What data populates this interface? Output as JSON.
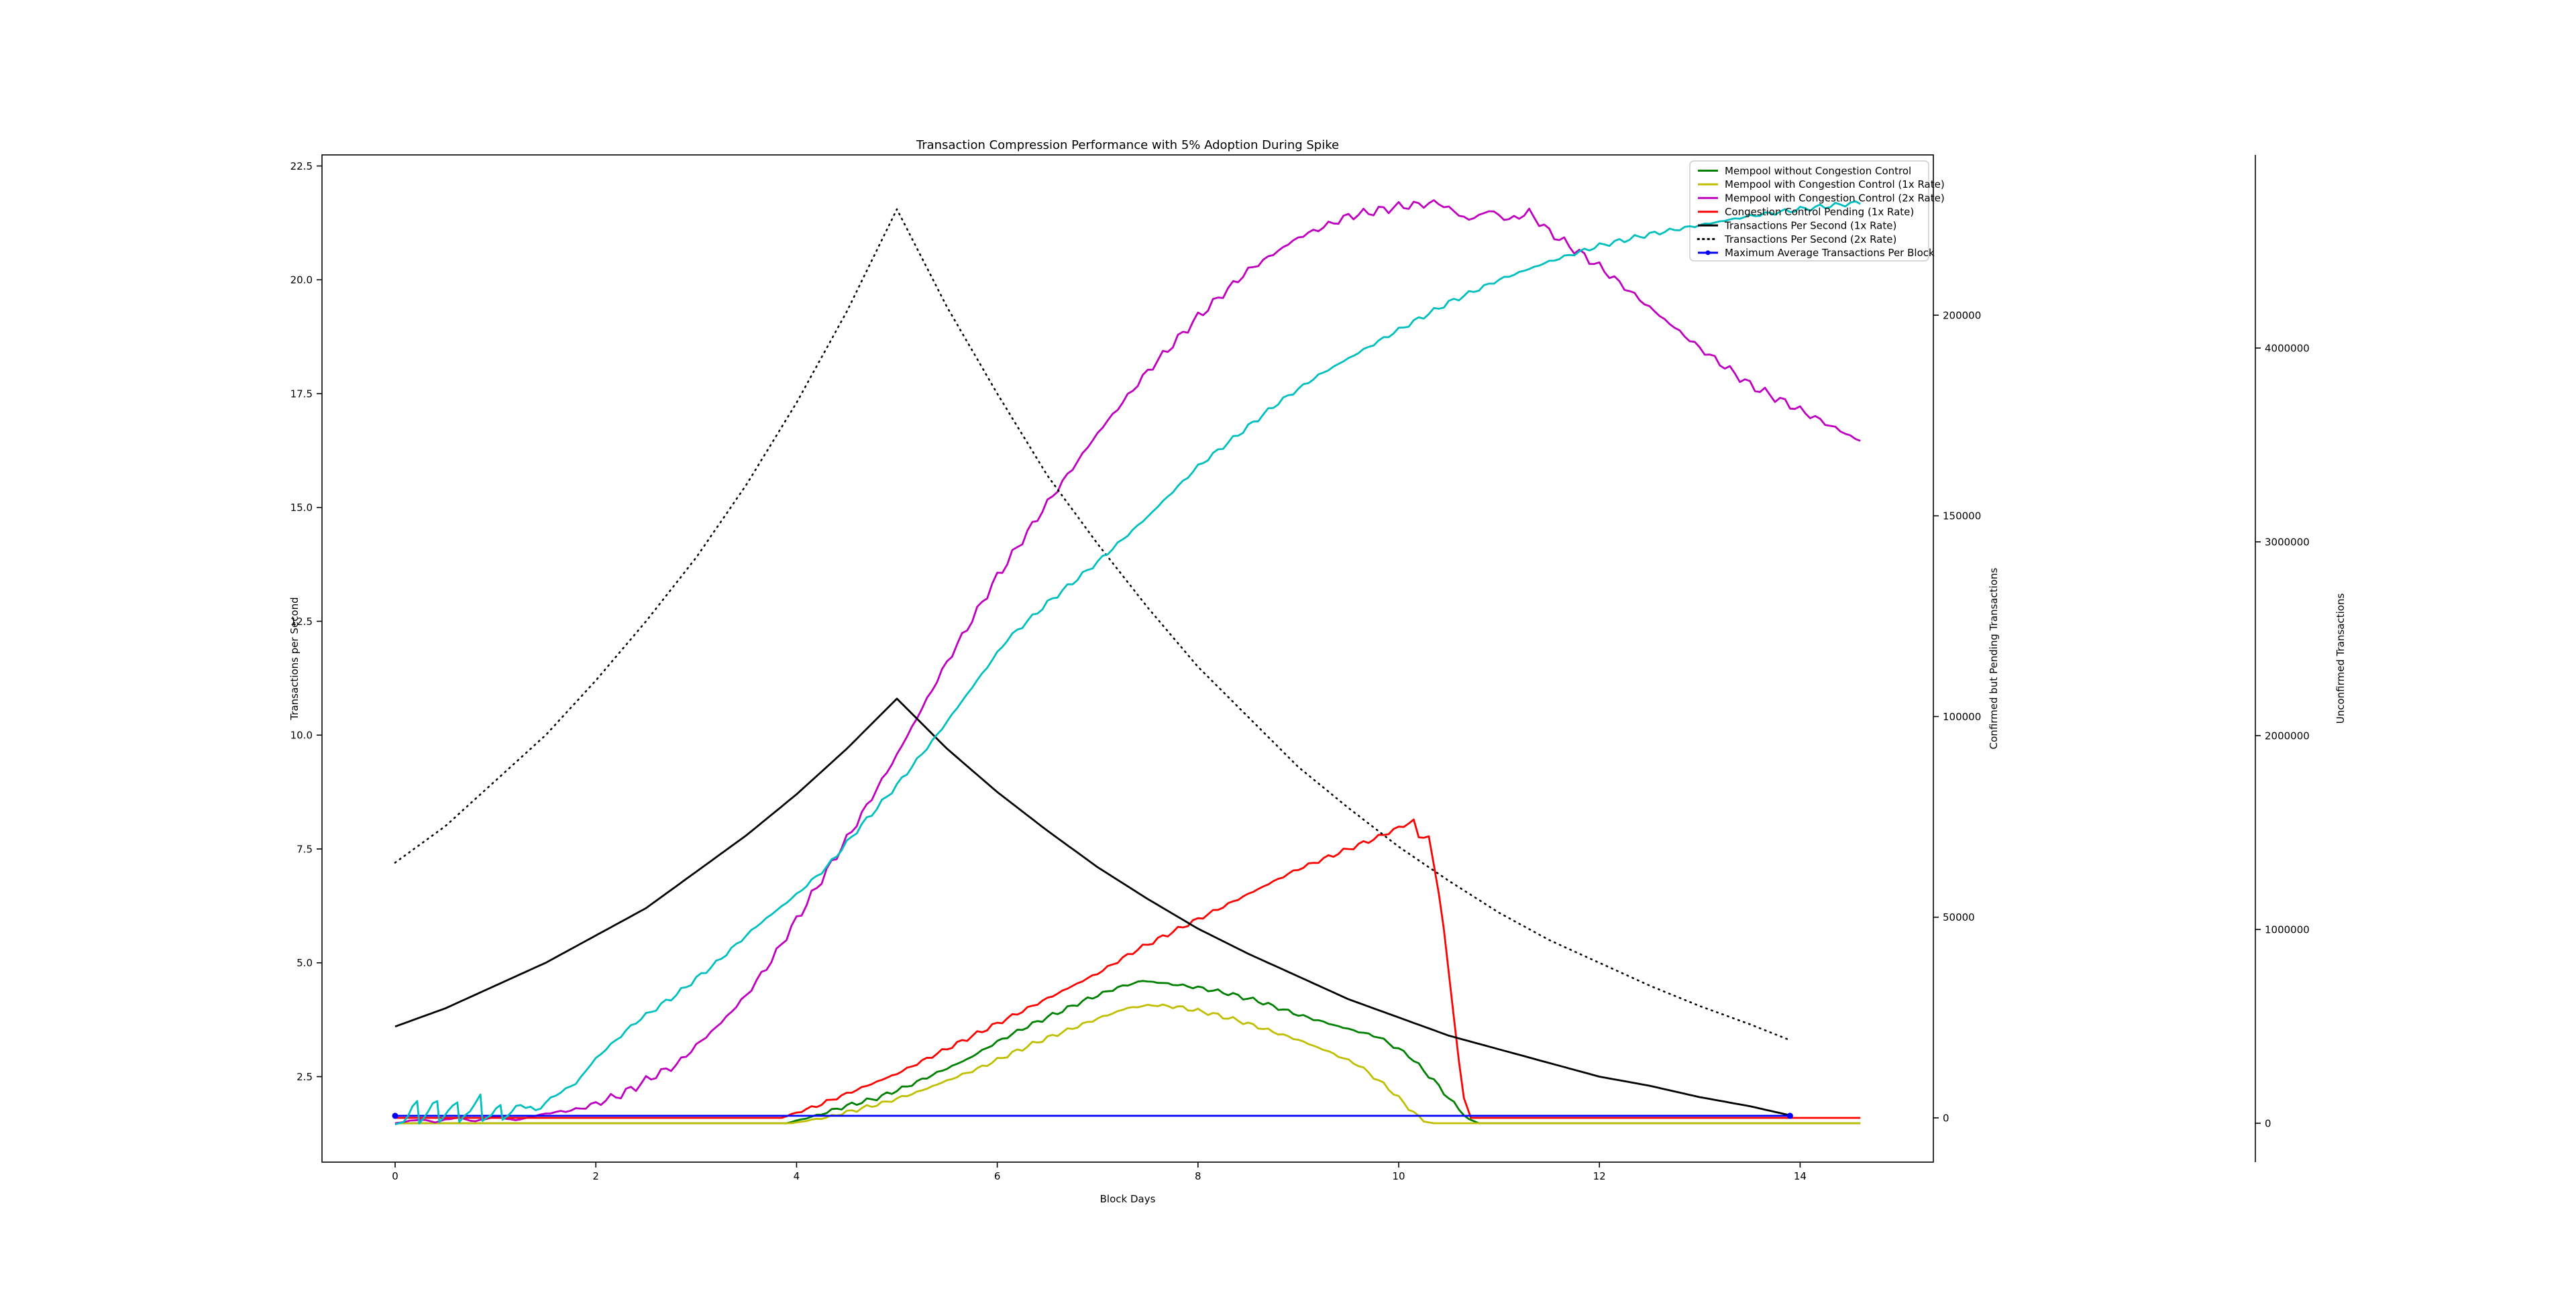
{
  "title": "Transaction Compression Performance with 5% Adoption During Spike",
  "axes": {
    "x": {
      "label": "Block Days",
      "tick_labels": [
        "0",
        "2",
        "4",
        "6",
        "8",
        "10",
        "12",
        "14"
      ],
      "tick_values": [
        0,
        2,
        4,
        6,
        8,
        10,
        12,
        14
      ],
      "range": [
        -0.73,
        15.33
      ]
    },
    "y_left": {
      "label": "Transactions per Second",
      "tick_labels": [
        "2.5",
        "5.0",
        "7.5",
        "10.0",
        "12.5",
        "15.0",
        "17.5",
        "20.0",
        "22.5"
      ],
      "tick_values": [
        2.5,
        5.0,
        7.5,
        10.0,
        12.5,
        15.0,
        17.5,
        20.0,
        22.5
      ],
      "range": [
        0.62,
        22.74
      ]
    },
    "y_right_pending": {
      "label": "Confirmed but Pending Transactions",
      "label_color": "#ff0000",
      "tick_labels": [
        "0",
        "50000",
        "100000",
        "150000",
        "200000"
      ],
      "tick_values": [
        0,
        50000,
        100000,
        150000,
        200000
      ]
    },
    "y_right_unconfirmed": {
      "label": "Unconfirmed Transactions",
      "label_color": "#bfbf00",
      "tick_labels": [
        "0",
        "1000000",
        "2000000",
        "3000000",
        "4000000"
      ],
      "tick_values": [
        0,
        1000000,
        2000000,
        3000000,
        4000000
      ]
    }
  },
  "legend": {
    "entries": [
      {
        "label": "Mempool without Congestion Control",
        "color": "#008000",
        "dash": null,
        "marker": false
      },
      {
        "label": "Mempool with Congestion Control (1x Rate)",
        "color": "#bfbf00",
        "dash": null,
        "marker": false
      },
      {
        "label": "Mempool with Congestion Control (2x Rate)",
        "color": "#bf00bf",
        "dash": null,
        "marker": false
      },
      {
        "label": "Congestion Control Pending (1x Rate)",
        "color": "#ff0000",
        "dash": null,
        "marker": false
      },
      {
        "label": "Transactions Per Second (1x Rate)",
        "color": "#000000",
        "dash": null,
        "marker": false
      },
      {
        "label": "Transactions Per Second (2x Rate)",
        "color": "#000000",
        "dash": "dot",
        "marker": false
      },
      {
        "label": "Maximum Average Transactions Per Block",
        "color": "#0000ff",
        "dash": null,
        "marker": true
      }
    ]
  },
  "chart_data": {
    "type": "line",
    "title": "Transaction Compression Performance with 5% Adoption During Spike",
    "xlabel": "Block Days",
    "x_unit": "block days",
    "grid": false,
    "legend_position": "upper right",
    "series": [
      {
        "name": "Mempool without Congestion Control",
        "color": "#008000",
        "axis": "unconfirmed",
        "dash": null,
        "jitter": 12000,
        "end_markers": false,
        "points": [
          [
            0,
            0
          ],
          [
            3.9,
            0
          ],
          [
            4.2,
            40000
          ],
          [
            4.5,
            90000
          ],
          [
            4.8,
            130000
          ],
          [
            5.1,
            190000
          ],
          [
            5.4,
            260000
          ],
          [
            5.7,
            330000
          ],
          [
            6.0,
            420000
          ],
          [
            6.3,
            500000
          ],
          [
            6.6,
            570000
          ],
          [
            6.9,
            640000
          ],
          [
            7.2,
            700000
          ],
          [
            7.45,
            735000
          ],
          [
            7.7,
            720000
          ],
          [
            8.0,
            700000
          ],
          [
            8.3,
            670000
          ],
          [
            8.6,
            630000
          ],
          [
            9.0,
            560000
          ],
          [
            9.4,
            500000
          ],
          [
            9.8,
            445000
          ],
          [
            10.1,
            350000
          ],
          [
            10.35,
            220000
          ],
          [
            10.55,
            100000
          ],
          [
            10.7,
            20000
          ],
          [
            10.8,
            0
          ],
          [
            14.6,
            0
          ]
        ]
      },
      {
        "name": "Mempool with Congestion Control (1x Rate)",
        "color": "#bfbf00",
        "axis": "unconfirmed",
        "dash": null,
        "jitter": 12000,
        "end_markers": false,
        "points": [
          [
            0,
            0
          ],
          [
            3.95,
            0
          ],
          [
            4.3,
            30000
          ],
          [
            4.6,
            70000
          ],
          [
            4.9,
            110000
          ],
          [
            5.2,
            160000
          ],
          [
            5.5,
            220000
          ],
          [
            5.8,
            280000
          ],
          [
            6.1,
            350000
          ],
          [
            6.4,
            420000
          ],
          [
            6.7,
            480000
          ],
          [
            7.0,
            540000
          ],
          [
            7.3,
            595000
          ],
          [
            7.55,
            610000
          ],
          [
            7.8,
            600000
          ],
          [
            8.1,
            570000
          ],
          [
            8.4,
            530000
          ],
          [
            8.7,
            480000
          ],
          [
            9.0,
            430000
          ],
          [
            9.3,
            370000
          ],
          [
            9.6,
            300000
          ],
          [
            9.9,
            180000
          ],
          [
            10.1,
            80000
          ],
          [
            10.25,
            10000
          ],
          [
            10.35,
            0
          ],
          [
            14.6,
            0
          ]
        ]
      },
      {
        "name": "Mempool with Congestion Control (2x Rate)",
        "color": "#bf00bf",
        "axis": "unconfirmed",
        "dash": null,
        "jitter": 25000,
        "end_markers": false,
        "points": [
          [
            0,
            0
          ],
          [
            0.25,
            20000
          ],
          [
            0.4,
            5000
          ],
          [
            0.6,
            30000
          ],
          [
            0.8,
            10000
          ],
          [
            1.0,
            35000
          ],
          [
            1.2,
            15000
          ],
          [
            1.5,
            50000
          ],
          [
            1.8,
            70000
          ],
          [
            2.0,
            100000
          ],
          [
            2.3,
            160000
          ],
          [
            2.6,
            250000
          ],
          [
            2.8,
            300000
          ],
          [
            3.0,
            400000
          ],
          [
            3.25,
            520000
          ],
          [
            3.5,
            660000
          ],
          [
            3.75,
            840000
          ],
          [
            4.0,
            1050000
          ],
          [
            4.3,
            1300000
          ],
          [
            4.6,
            1550000
          ],
          [
            5.0,
            1900000
          ],
          [
            5.5,
            2380000
          ],
          [
            6.0,
            2820000
          ],
          [
            6.5,
            3200000
          ],
          [
            7.0,
            3560000
          ],
          [
            7.5,
            3880000
          ],
          [
            8.0,
            4160000
          ],
          [
            8.5,
            4400000
          ],
          [
            9.0,
            4570000
          ],
          [
            9.5,
            4680000
          ],
          [
            10.0,
            4730000
          ],
          [
            10.4,
            4750000
          ],
          [
            10.7,
            4660000
          ],
          [
            10.9,
            4710000
          ],
          [
            11.1,
            4660000
          ],
          [
            11.3,
            4700000
          ],
          [
            11.5,
            4600000
          ],
          [
            12.0,
            4420000
          ],
          [
            12.5,
            4210000
          ],
          [
            13.0,
            4000000
          ],
          [
            13.5,
            3810000
          ],
          [
            14.0,
            3680000
          ],
          [
            14.3,
            3600000
          ],
          [
            14.6,
            3520000
          ]
        ]
      },
      {
        "name": "Congestion Control Pending (1x Rate)",
        "color": "#ff0000",
        "axis": "pending",
        "dash": null,
        "jitter": 600,
        "end_markers": false,
        "points": [
          [
            0,
            0
          ],
          [
            3.85,
            0
          ],
          [
            4.2,
            3000
          ],
          [
            4.6,
            7000
          ],
          [
            5.0,
            11000
          ],
          [
            5.4,
            16000
          ],
          [
            5.8,
            21000
          ],
          [
            6.2,
            26000
          ],
          [
            6.6,
            31000
          ],
          [
            7.0,
            36000
          ],
          [
            7.4,
            42000
          ],
          [
            7.8,
            47000
          ],
          [
            8.2,
            52000
          ],
          [
            8.6,
            57000
          ],
          [
            9.0,
            62000
          ],
          [
            9.4,
            66000
          ],
          [
            9.8,
            70000
          ],
          [
            10.15,
            74000
          ],
          [
            10.2,
            70000
          ],
          [
            10.3,
            70000
          ],
          [
            10.35,
            63000
          ],
          [
            10.4,
            56000
          ],
          [
            10.45,
            47000
          ],
          [
            10.5,
            36000
          ],
          [
            10.55,
            25000
          ],
          [
            10.6,
            14000
          ],
          [
            10.65,
            5000
          ],
          [
            10.72,
            0
          ],
          [
            14.6,
            0
          ]
        ]
      },
      {
        "name": "Transactions Per Second (1x Rate)",
        "color": "#000000",
        "axis": "left",
        "dash": null,
        "jitter": 0,
        "end_markers": false,
        "points": [
          [
            0,
            3.6
          ],
          [
            0.5,
            4.0
          ],
          [
            1,
            4.5
          ],
          [
            1.5,
            5.0
          ],
          [
            2,
            5.6
          ],
          [
            2.5,
            6.2
          ],
          [
            3,
            7.0
          ],
          [
            3.5,
            7.8
          ],
          [
            4,
            8.7
          ],
          [
            4.5,
            9.7
          ],
          [
            5,
            10.8
          ],
          [
            5.5,
            9.7
          ],
          [
            6,
            8.75
          ],
          [
            6.5,
            7.9
          ],
          [
            7,
            7.1
          ],
          [
            7.5,
            6.4
          ],
          [
            8,
            5.75
          ],
          [
            8.5,
            5.2
          ],
          [
            9,
            4.7
          ],
          [
            9.5,
            4.2
          ],
          [
            10,
            3.8
          ],
          [
            10.5,
            3.4
          ],
          [
            11,
            3.1
          ],
          [
            11.5,
            2.8
          ],
          [
            12,
            2.5
          ],
          [
            12.5,
            2.3
          ],
          [
            13,
            2.05
          ],
          [
            13.5,
            1.85
          ],
          [
            13.9,
            1.65
          ]
        ]
      },
      {
        "name": "Transactions Per Second (2x Rate)",
        "color": "#000000",
        "axis": "left",
        "dash": "dot",
        "jitter": 0,
        "end_markers": false,
        "points": [
          [
            0,
            7.2
          ],
          [
            0.5,
            8.0
          ],
          [
            1,
            9.0
          ],
          [
            1.5,
            10.0
          ],
          [
            2,
            11.2
          ],
          [
            2.5,
            12.5
          ],
          [
            3,
            13.9
          ],
          [
            3.5,
            15.5
          ],
          [
            4,
            17.3
          ],
          [
            4.5,
            19.3
          ],
          [
            5,
            21.55
          ],
          [
            5.5,
            19.4
          ],
          [
            6,
            17.5
          ],
          [
            6.5,
            15.7
          ],
          [
            7,
            14.2
          ],
          [
            7.5,
            12.8
          ],
          [
            8,
            11.5
          ],
          [
            8.5,
            10.4
          ],
          [
            9,
            9.3
          ],
          [
            9.5,
            8.4
          ],
          [
            10,
            7.55
          ],
          [
            10.5,
            6.8
          ],
          [
            11,
            6.1
          ],
          [
            11.5,
            5.5
          ],
          [
            12,
            5.0
          ],
          [
            12.5,
            4.5
          ],
          [
            13,
            4.05
          ],
          [
            13.5,
            3.65
          ],
          [
            13.9,
            3.3
          ]
        ]
      },
      {
        "name": "Maximum Average Transactions Per Block",
        "color": "#0000ff",
        "axis": "left",
        "dash": null,
        "jitter": 0,
        "end_markers": true,
        "points": [
          [
            0,
            1.64
          ],
          [
            13.9,
            1.64
          ]
        ]
      },
      {
        "name": "",
        "color": "#00bfbf",
        "axis": "left",
        "dash": null,
        "jitter": 0.06,
        "end_markers": false,
        "points": [
          [
            0,
            1.45
          ],
          [
            0.08,
            1.5
          ],
          [
            0.22,
            1.95
          ],
          [
            0.24,
            1.47
          ],
          [
            0.42,
            2.0
          ],
          [
            0.44,
            1.5
          ],
          [
            0.62,
            1.98
          ],
          [
            0.64,
            1.5
          ],
          [
            0.85,
            2.05
          ],
          [
            0.87,
            1.52
          ],
          [
            1.05,
            1.85
          ],
          [
            1.07,
            1.55
          ],
          [
            1.25,
            1.9
          ],
          [
            1.4,
            1.75
          ],
          [
            1.6,
            2.1
          ],
          [
            1.8,
            2.35
          ],
          [
            2.0,
            2.9
          ],
          [
            2.4,
            3.7
          ],
          [
            2.8,
            4.3
          ],
          [
            3.2,
            5.0
          ],
          [
            3.6,
            5.8
          ],
          [
            4.0,
            6.5
          ],
          [
            4.3,
            7.1
          ],
          [
            4.6,
            7.9
          ],
          [
            5.0,
            8.9
          ],
          [
            5.4,
            10.0
          ],
          [
            5.8,
            11.2
          ],
          [
            6.1,
            12.1
          ],
          [
            6.5,
            12.9
          ],
          [
            7.0,
            13.8
          ],
          [
            7.5,
            14.8
          ],
          [
            8.0,
            15.9
          ],
          [
            8.4,
            16.6
          ],
          [
            8.8,
            17.3
          ],
          [
            9.2,
            17.9
          ],
          [
            9.6,
            18.4
          ],
          [
            10.0,
            18.9
          ],
          [
            10.5,
            19.5
          ],
          [
            11.0,
            20.0
          ],
          [
            11.5,
            20.4
          ],
          [
            12.0,
            20.75
          ],
          [
            12.5,
            21.0
          ],
          [
            13.0,
            21.2
          ],
          [
            13.5,
            21.4
          ],
          [
            14.0,
            21.55
          ],
          [
            14.6,
            21.7
          ]
        ]
      }
    ]
  }
}
